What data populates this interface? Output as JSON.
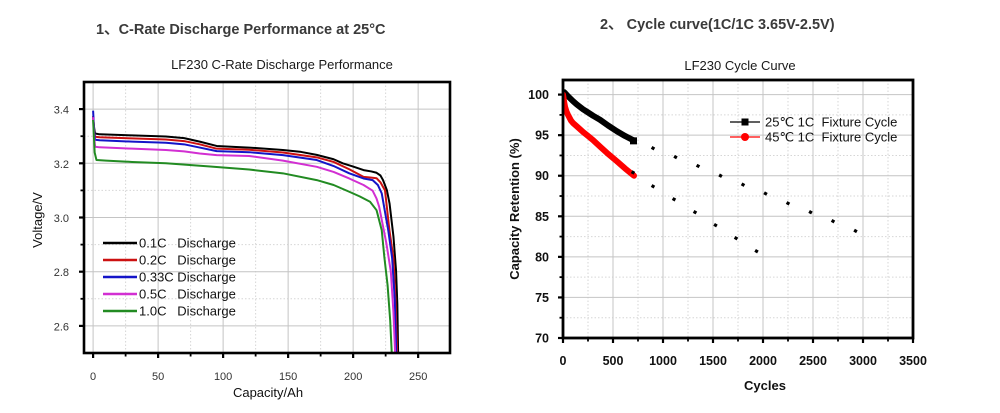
{
  "sections": [
    {
      "heading": "1、C-Rate Discharge Performance at 25°C"
    },
    {
      "heading": "2、 Cycle curve(1C/1C 3.65V-2.5V)"
    }
  ],
  "chart_data": [
    {
      "type": "line",
      "title": "LF230 C-Rate Discharge Performance",
      "xlabel": "Capacity/Ah",
      "ylabel": "Voltage/V",
      "xlim": [
        -7,
        274.5
      ],
      "ylim": [
        2.5,
        3.5
      ],
      "xticks": [
        0,
        50,
        100,
        150,
        200,
        250
      ],
      "xtick_labels": [
        "0",
        "50",
        "100",
        "150",
        "200",
        "250"
      ],
      "xminor": [
        25,
        75,
        125,
        175,
        225
      ],
      "yticks": [
        2.6,
        2.8,
        3.0,
        3.2,
        3.4
      ],
      "ytick_labels": [
        "2.6",
        "2.8",
        "3.0",
        "3.2",
        "3.4"
      ],
      "yminor": [
        2.7,
        2.9,
        3.1,
        3.3
      ],
      "grid": true,
      "legend": {
        "position": "lower-left"
      },
      "series": [
        {
          "name": "0.1C   Discharge",
          "color": "#000000",
          "points": [
            [
              0,
              3.37
            ],
            [
              0.8,
              3.33
            ],
            [
              1.5,
              3.31
            ],
            [
              5,
              3.307
            ],
            [
              30,
              3.303
            ],
            [
              56,
              3.299
            ],
            [
              70,
              3.293
            ],
            [
              82,
              3.28
            ],
            [
              95,
              3.264
            ],
            [
              110,
              3.26
            ],
            [
              120,
              3.258
            ],
            [
              146,
              3.249
            ],
            [
              160,
              3.242
            ],
            [
              172,
              3.231
            ],
            [
              185,
              3.215
            ],
            [
              192,
              3.2
            ],
            [
              200,
              3.188
            ],
            [
              208,
              3.175
            ],
            [
              214,
              3.17
            ],
            [
              218,
              3.165
            ],
            [
              221,
              3.155
            ],
            [
              223,
              3.138
            ],
            [
              226,
              3.1
            ],
            [
              228,
              3.052
            ],
            [
              231,
              2.93
            ],
            [
              233,
              2.805
            ],
            [
              234,
              2.68
            ],
            [
              234.6,
              2.5
            ]
          ]
        },
        {
          "name": "0.2C   Discharge",
          "color": "#cc1111",
          "points": [
            [
              0,
              3.375
            ],
            [
              0.8,
              3.32
            ],
            [
              1.5,
              3.298
            ],
            [
              5,
              3.296
            ],
            [
              30,
              3.292
            ],
            [
              56,
              3.288
            ],
            [
              70,
              3.282
            ],
            [
              82,
              3.27
            ],
            [
              95,
              3.254
            ],
            [
              120,
              3.25
            ],
            [
              146,
              3.24
            ],
            [
              172,
              3.222
            ],
            [
              185,
              3.205
            ],
            [
              197,
              3.178
            ],
            [
              208,
              3.15
            ],
            [
              214,
              3.147
            ],
            [
              218,
              3.145
            ],
            [
              221,
              3.13
            ],
            [
              224.5,
              3.1
            ],
            [
              228,
              2.95
            ],
            [
              231,
              2.85
            ],
            [
              232.5,
              2.7
            ],
            [
              233.8,
              2.5
            ]
          ]
        },
        {
          "name": "0.33C Discharge",
          "color": "#1414c8",
          "points": [
            [
              0,
              3.394
            ],
            [
              0.8,
              3.32
            ],
            [
              1.5,
              3.287
            ],
            [
              5,
              3.285
            ],
            [
              30,
              3.28
            ],
            [
              56,
              3.276
            ],
            [
              70,
              3.27
            ],
            [
              82,
              3.258
            ],
            [
              95,
              3.245
            ],
            [
              120,
              3.241
            ],
            [
              146,
              3.23
            ],
            [
              172,
              3.212
            ],
            [
              185,
              3.19
            ],
            [
              197,
              3.163
            ],
            [
              208,
              3.144
            ],
            [
              215,
              3.138
            ],
            [
              219,
              3.12
            ],
            [
              222,
              3.089
            ],
            [
              227,
              2.953
            ],
            [
              230,
              2.85
            ],
            [
              232,
              2.7
            ],
            [
              233.2,
              2.5
            ]
          ]
        },
        {
          "name": "0.5C   Discharge",
          "color": "#d22fd2",
          "points": [
            [
              0,
              3.37
            ],
            [
              0.8,
              3.3
            ],
            [
              1.5,
              3.261
            ],
            [
              5,
              3.259
            ],
            [
              30,
              3.254
            ],
            [
              56,
              3.249
            ],
            [
              70,
              3.244
            ],
            [
              82,
              3.236
            ],
            [
              95,
              3.23
            ],
            [
              120,
              3.227
            ],
            [
              146,
              3.21
            ],
            [
              172,
              3.187
            ],
            [
              185,
              3.168
            ],
            [
              197,
              3.144
            ],
            [
              208,
              3.12
            ],
            [
              215,
              3.099
            ],
            [
              218,
              3.07
            ],
            [
              220,
              3.04
            ],
            [
              225.6,
              2.904
            ],
            [
              229,
              2.8
            ],
            [
              231,
              2.65
            ],
            [
              232.3,
              2.5
            ]
          ]
        },
        {
          "name": "1.0C   Discharge",
          "color": "#228b22",
          "points": [
            [
              0,
              3.36
            ],
            [
              0.6,
              3.3
            ],
            [
              1.2,
              3.24
            ],
            [
              2.6,
              3.212
            ],
            [
              10,
              3.21
            ],
            [
              30,
              3.205
            ],
            [
              56,
              3.2
            ],
            [
              90,
              3.188
            ],
            [
              120,
              3.177
            ],
            [
              146,
              3.163
            ],
            [
              172,
              3.138
            ],
            [
              185,
              3.12
            ],
            [
              197,
              3.095
            ],
            [
              205,
              3.078
            ],
            [
              213,
              3.058
            ],
            [
              218,
              3.027
            ],
            [
              222,
              2.953
            ],
            [
              224,
              2.854
            ],
            [
              226.5,
              2.75
            ],
            [
              228.5,
              2.62
            ],
            [
              229.7,
              2.5
            ]
          ]
        }
      ]
    },
    {
      "type": "line",
      "title": "LF230 Cycle Curve",
      "xlabel": "Cycles",
      "ylabel": "Capacity Retention (%)",
      "xlim": [
        0,
        3500
      ],
      "ylim": [
        70,
        101.8
      ],
      "xticks": [
        0,
        500,
        1000,
        1500,
        2000,
        2500,
        3000,
        3500
      ],
      "xtick_labels": [
        "0",
        "500",
        "1000",
        "1500",
        "2000",
        "2500",
        "3000",
        "3500"
      ],
      "xminor": [
        250,
        750,
        1250,
        1750,
        2250,
        2750,
        3250
      ],
      "yticks": [
        70,
        75,
        80,
        85,
        90,
        95,
        100
      ],
      "ytick_labels": [
        "70",
        "75",
        "80",
        "85",
        "90",
        "95",
        "100"
      ],
      "yminor": [
        72.5,
        77.5,
        82.5,
        87.5,
        92.5,
        97.5
      ],
      "grid": true,
      "legend": {
        "position": "top-right"
      },
      "series": [
        {
          "name": "25℃ 1C  Fixture Cycle",
          "color": "#000000",
          "marker": "square",
          "points": [
            [
              0,
              100.4
            ],
            [
              20,
              100.2
            ],
            [
              50,
              99.8
            ],
            [
              100,
              99.2
            ],
            [
              137,
              98.8
            ],
            [
              200,
              98.2
            ],
            [
              250,
              97.8
            ],
            [
              300,
              97.4
            ],
            [
              370,
              96.9
            ],
            [
              450,
              96.2
            ],
            [
              537,
              95.5
            ],
            [
              620,
              94.9
            ],
            [
              700,
              94.4
            ],
            [
              720,
              94.3
            ]
          ],
          "projected_points": [
            [
              900,
              93.4
            ],
            [
              1125,
              92.3
            ],
            [
              1350,
              91.2
            ],
            [
              1575,
              90.0
            ],
            [
              1800,
              88.9
            ],
            [
              2025,
              87.8
            ],
            [
              2250,
              86.6
            ],
            [
              2475,
              85.5
            ],
            [
              2700,
              84.4
            ],
            [
              2925,
              83.2
            ]
          ]
        },
        {
          "name": "45℃ 1C  Fixture Cycle",
          "color": "#ff0000",
          "marker": "circle",
          "points": [
            [
              0,
              100
            ],
            [
              10,
              99.2
            ],
            [
              20,
              98.5
            ],
            [
              35,
              97.9
            ],
            [
              50,
              97.5
            ],
            [
              80,
              96.8
            ],
            [
              100,
              96.5
            ],
            [
              137,
              96.1
            ],
            [
              200,
              95.4
            ],
            [
              250,
              94.9
            ],
            [
              300,
              94.4
            ],
            [
              370,
              93.6
            ],
            [
              450,
              92.7
            ],
            [
              537,
              91.8
            ],
            [
              620,
              90.9
            ],
            [
              700,
              90.1
            ],
            [
              710,
              90.0
            ]
          ],
          "projected_points": [
            [
              700,
              90.4
            ],
            [
              900,
              88.7
            ],
            [
              1110,
              87.1
            ],
            [
              1320,
              85.5
            ],
            [
              1525,
              83.9
            ],
            [
              1730,
              82.3
            ],
            [
              1935,
              80.7
            ]
          ]
        }
      ],
      "projection_marker_color": "#000000"
    }
  ]
}
